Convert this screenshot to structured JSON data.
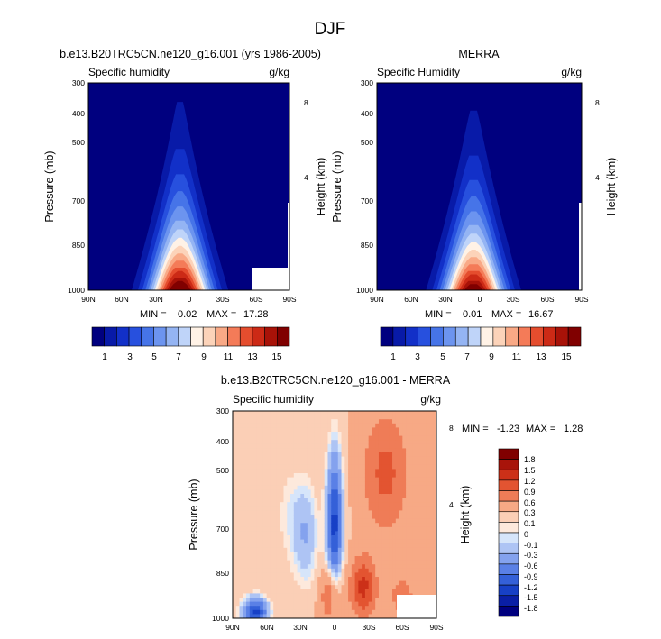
{
  "figure": {
    "title": "DJF"
  },
  "colors": {
    "background_min": "#00007f",
    "seq": [
      "#00007f",
      "#081aa8",
      "#1230c8",
      "#2750de",
      "#4674e8",
      "#6c94ef",
      "#94b4f3",
      "#bfd4f9",
      "#fff2e6",
      "#fcd3b9",
      "#f9a986",
      "#f47b58",
      "#e54d2e",
      "#cc2a16",
      "#a81208",
      "#800000"
    ],
    "div": [
      "#00007f",
      "#0a1fa6",
      "#1740c6",
      "#3460d8",
      "#5a80e6",
      "#84a2ee",
      "#aec4f4",
      "#d6e5fa",
      "#fde9dc",
      "#fbcfb6",
      "#f7a985",
      "#ef7c57",
      "#e35431",
      "#cc3018",
      "#a8140a",
      "#800000"
    ]
  },
  "chart_data": [
    {
      "id": "model",
      "type": "contour",
      "title": "b.e13.B20TRC5CN.ne120_g16.001 (yrs 1986-2005)",
      "subtitle_left": "Specific humidity",
      "subtitle_right": "g/kg",
      "ylabel": "Pressure (mb)",
      "ylabel_right": "Height (km)",
      "x_ticks": [
        "90N",
        "60N",
        "30N",
        "0",
        "30S",
        "60S",
        "90S"
      ],
      "y_ticks": [
        "300",
        "400",
        "500",
        "700",
        "850",
        "1000"
      ],
      "y_ticks_right": [
        "8",
        "4"
      ],
      "min_label": "MIN =",
      "min": "0.02",
      "max_label": "MAX =",
      "max": "17.28",
      "levels": [
        1,
        2,
        3,
        4,
        5,
        6,
        7,
        8,
        9,
        10,
        11,
        12,
        13,
        14,
        15
      ],
      "colorbar_labels": [
        "1",
        "3",
        "5",
        "7",
        "9",
        "11",
        "13",
        "15"
      ],
      "field": {
        "center_lat": 8,
        "surface_max": 17.3,
        "hw_surface": 38,
        "hw_top": 10,
        "scale_height_frac": 0.33
      }
    },
    {
      "id": "obs",
      "type": "contour",
      "title": "MERRA",
      "subtitle_left": "Specific Humidity",
      "subtitle_right": "g/kg",
      "ylabel": "Pressure (mb)",
      "ylabel_right": "Height (km)",
      "x_ticks": [
        "90N",
        "60N",
        "30N",
        "0",
        "30S",
        "60S",
        "90S"
      ],
      "y_ticks": [
        "300",
        "400",
        "500",
        "700",
        "850",
        "1000"
      ],
      "y_ticks_right": [
        "8",
        "4"
      ],
      "min_label": "MIN =",
      "min": "0.01",
      "max_label": "MAX =",
      "max": "16.67",
      "levels": [
        1,
        2,
        3,
        4,
        5,
        6,
        7,
        8,
        9,
        10,
        11,
        12,
        13,
        14,
        15
      ],
      "colorbar_labels": [
        "1",
        "3",
        "5",
        "7",
        "9",
        "11",
        "13",
        "15"
      ],
      "field": {
        "center_lat": 5,
        "surface_max": 16.7,
        "hw_surface": 37,
        "hw_top": 10,
        "scale_height_frac": 0.32
      }
    },
    {
      "id": "diff",
      "type": "contour",
      "title": "b.e13.B20TRC5CN.ne120_g16.001 - MERRA",
      "subtitle_left": "Specific humidity",
      "subtitle_right": "g/kg",
      "ylabel": "Pressure (mb)",
      "ylabel_right": "Height (km)",
      "x_ticks": [
        "90N",
        "60N",
        "30N",
        "0",
        "30S",
        "60S",
        "90S"
      ],
      "y_ticks": [
        "300",
        "400",
        "500",
        "700",
        "850",
        "1000"
      ],
      "y_ticks_right": [
        "8",
        "4"
      ],
      "min_label": "MIN =",
      "min": "-1.23",
      "max_label": "MAX =",
      "max": "1.28",
      "levels": [
        -1.8,
        -1.5,
        -1.2,
        -0.9,
        -0.6,
        -0.3,
        -0.1,
        0,
        0.1,
        0.3,
        0.6,
        0.9,
        1.2,
        1.5,
        1.8
      ],
      "colorbar_labels": [
        "1.8",
        "1.5",
        "1.2",
        "0.9",
        "0.6",
        "0.3",
        "0.1",
        "0",
        "-0.1",
        "-0.3",
        "-0.6",
        "-0.9",
        "-1.2",
        "-1.5",
        "-1.8"
      ]
    }
  ]
}
